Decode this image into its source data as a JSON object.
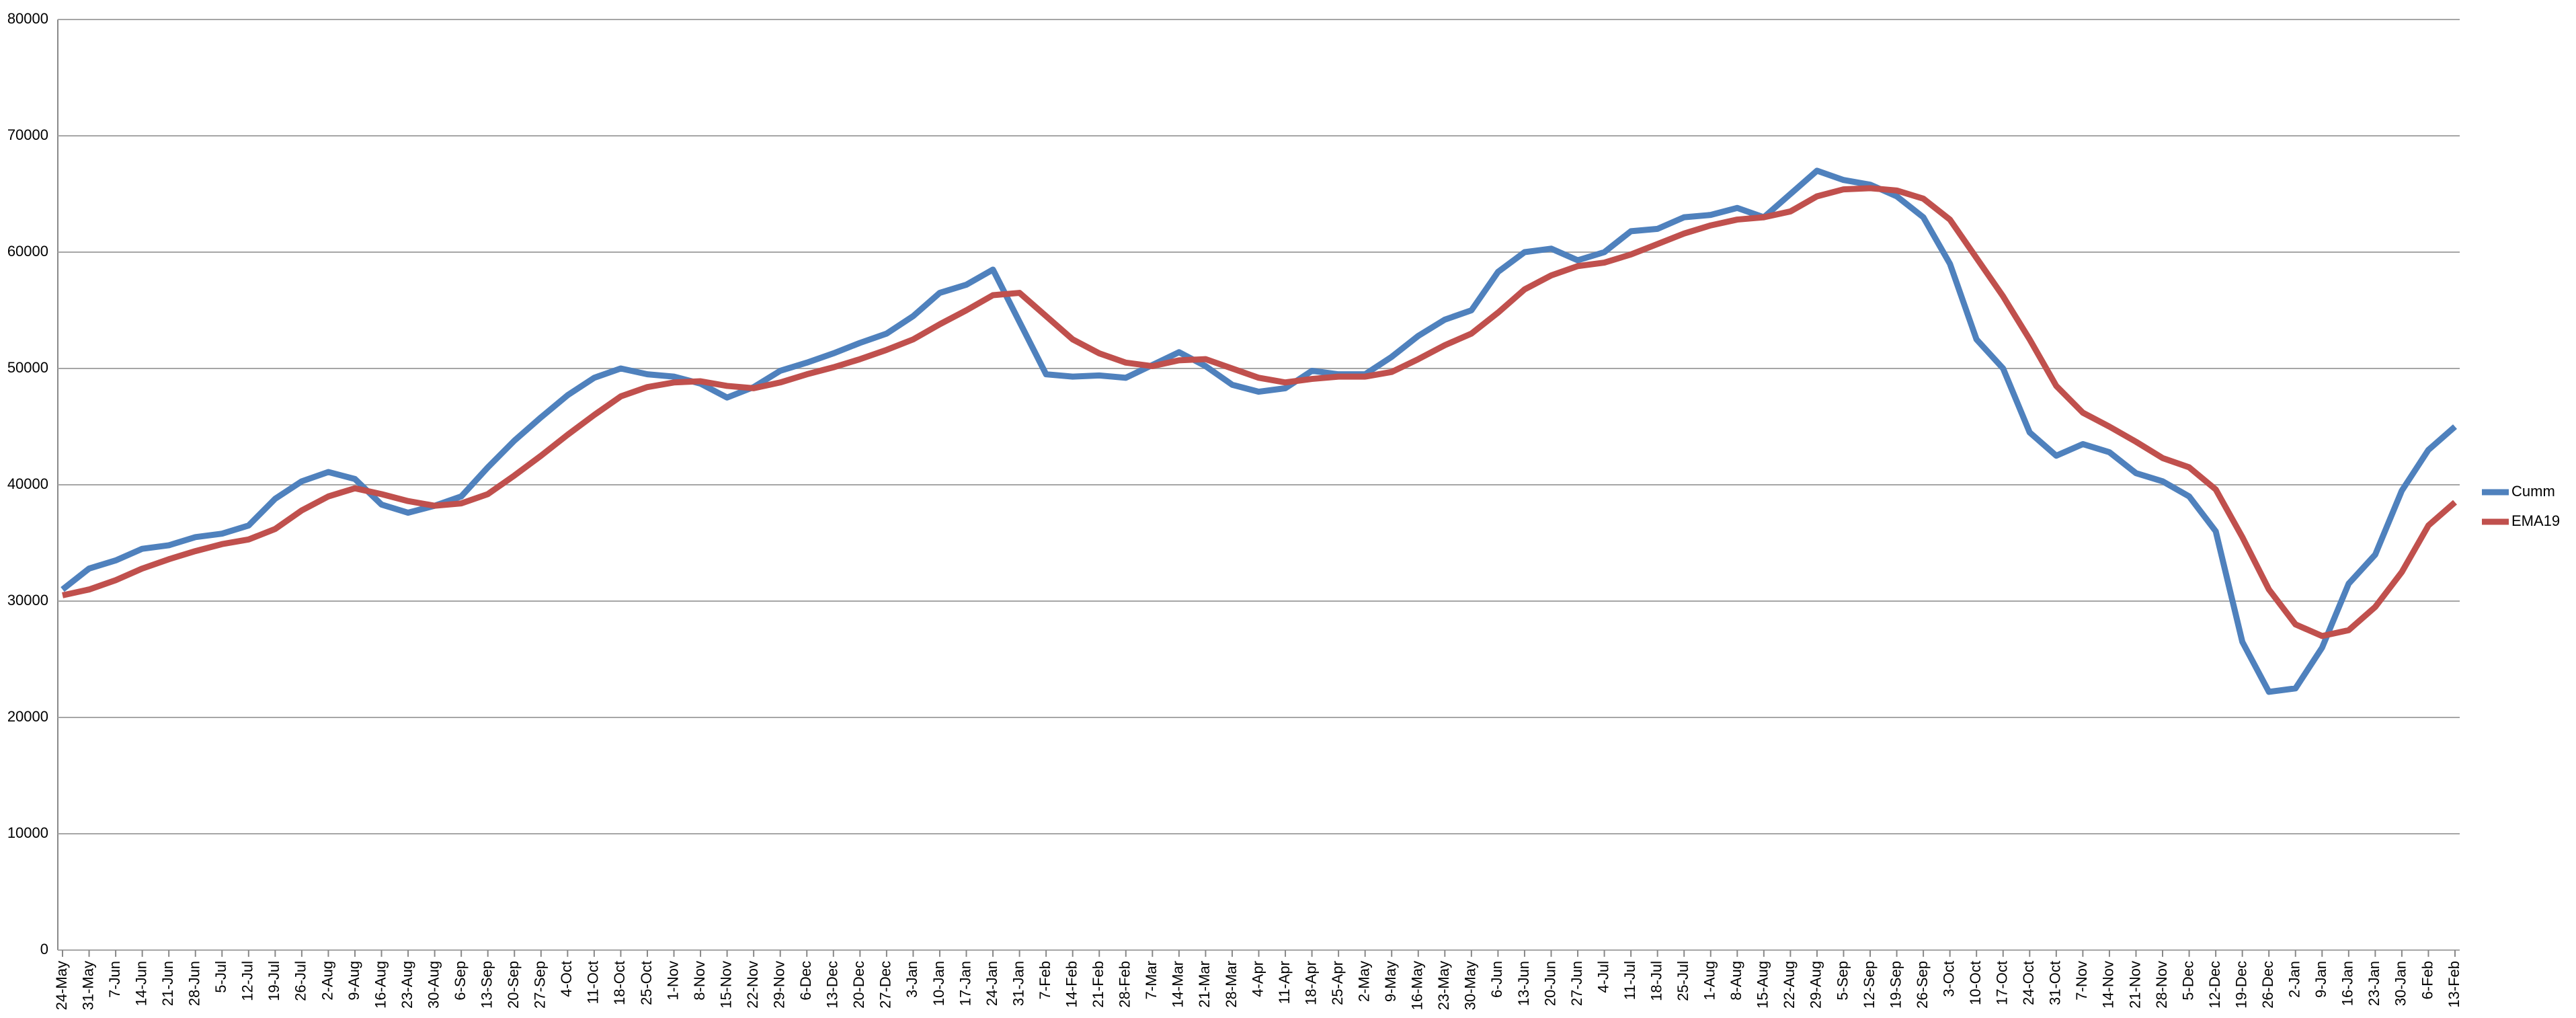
{
  "chart_data": {
    "type": "line",
    "categories": [
      "24-May",
      "31-May",
      "7-Jun",
      "14-Jun",
      "21-Jun",
      "28-Jun",
      "5-Jul",
      "12-Jul",
      "19-Jul",
      "26-Jul",
      "2-Aug",
      "9-Aug",
      "16-Aug",
      "23-Aug",
      "30-Aug",
      "6-Sep",
      "13-Sep",
      "20-Sep",
      "27-Sep",
      "4-Oct",
      "11-Oct",
      "18-Oct",
      "25-Oct",
      "1-Nov",
      "8-Nov",
      "15-Nov",
      "22-Nov",
      "29-Nov",
      "6-Dec",
      "13-Dec",
      "20-Dec",
      "27-Dec",
      "3-Jan",
      "10-Jan",
      "17-Jan",
      "24-Jan",
      "31-Jan",
      "7-Feb",
      "14-Feb",
      "21-Feb",
      "28-Feb",
      "7-Mar",
      "14-Mar",
      "21-Mar",
      "28-Mar",
      "4-Apr",
      "11-Apr",
      "18-Apr",
      "25-Apr",
      "2-May",
      "9-May",
      "16-May",
      "23-May",
      "30-May",
      "6-Jun",
      "13-Jun",
      "20-Jun",
      "27-Jun",
      "4-Jul",
      "11-Jul",
      "18-Jul",
      "25-Jul",
      "1-Aug",
      "8-Aug",
      "15-Aug",
      "22-Aug",
      "29-Aug",
      "5-Sep",
      "12-Sep",
      "19-Sep",
      "26-Sep",
      "3-Oct",
      "10-Oct",
      "17-Oct",
      "24-Oct",
      "31-Oct",
      "7-Nov",
      "14-Nov",
      "21-Nov",
      "28-Nov",
      "5-Dec",
      "12-Dec",
      "19-Dec",
      "26-Dec",
      "2-Jan",
      "9-Jan",
      "16-Jan",
      "23-Jan",
      "30-Jan",
      "6-Feb",
      "13-Feb"
    ],
    "series": [
      {
        "name": "Cumm",
        "color": "#4f81bd",
        "values": [
          31000,
          32800,
          33500,
          34500,
          34800,
          35500,
          35800,
          36500,
          38800,
          40300,
          41100,
          40500,
          38300,
          37600,
          38200,
          39000,
          41500,
          43800,
          45800,
          47700,
          49200,
          50000,
          49500,
          49300,
          48700,
          47500,
          48400,
          49800,
          50500,
          51300,
          52200,
          53000,
          54500,
          56500,
          57200,
          58500,
          54000,
          49500,
          49300,
          49400,
          49200,
          50300,
          51400,
          50200,
          48600,
          48000,
          48300,
          49800,
          49500,
          49500,
          51000,
          52800,
          54200,
          55000,
          58300,
          60000,
          60300,
          59300,
          60000,
          61800,
          62000,
          63000,
          63200,
          63800,
          63000,
          65000,
          67000,
          66200,
          65800,
          64800,
          63000,
          59000,
          52500,
          50000,
          44500,
          42500,
          43500,
          42800,
          41000,
          40300,
          39000,
          36000,
          26500,
          22200,
          22500,
          26000,
          31500,
          34000,
          39500,
          43000,
          45000
        ]
      },
      {
        "name": "EMA19",
        "color": "#c0504d",
        "values": [
          30500,
          31000,
          31800,
          32800,
          33600,
          34300,
          34900,
          35300,
          36200,
          37800,
          39000,
          39700,
          39200,
          38600,
          38200,
          38400,
          39200,
          40800,
          42500,
          44300,
          46000,
          47600,
          48400,
          48800,
          48900,
          48500,
          48300,
          48800,
          49500,
          50100,
          50800,
          51600,
          52500,
          53800,
          55000,
          56300,
          56500,
          54500,
          52500,
          51300,
          50500,
          50200,
          50700,
          50800,
          50000,
          49200,
          48800,
          49100,
          49300,
          49300,
          49700,
          50800,
          52000,
          53000,
          54800,
          56800,
          58000,
          58800,
          59100,
          59800,
          60700,
          61600,
          62300,
          62800,
          63000,
          63500,
          64800,
          65400,
          65500,
          65300,
          64600,
          62800,
          59500,
          56200,
          52500,
          48500,
          46200,
          45000,
          43700,
          42300,
          41500,
          39600,
          35500,
          31000,
          28000,
          27000,
          27500,
          29500,
          32500,
          36500,
          38500
        ]
      }
    ],
    "ylim": [
      0,
      80000
    ],
    "yticks": [
      0,
      10000,
      20000,
      30000,
      40000,
      50000,
      60000,
      70000,
      80000
    ],
    "grid": true,
    "legend": "right"
  }
}
